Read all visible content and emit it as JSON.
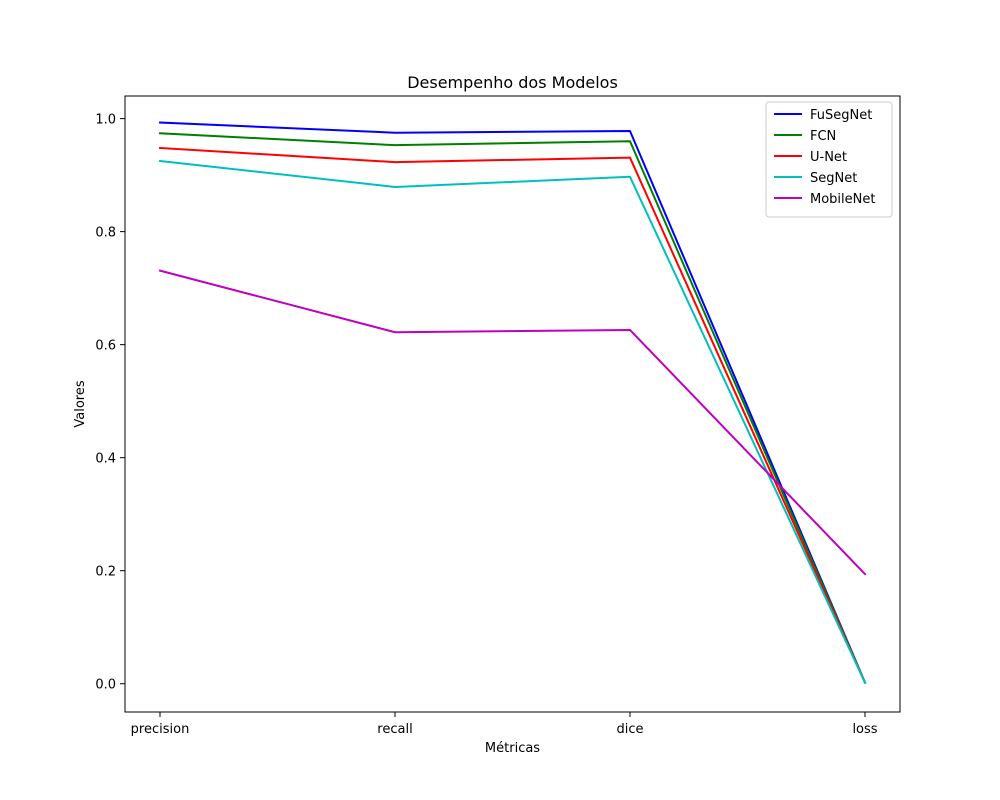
{
  "chart_data": {
    "type": "line",
    "title": "Desempenho dos Modelos",
    "xlabel": "Métricas",
    "ylabel": "Valores",
    "categories": [
      "precision",
      "recall",
      "dice",
      "loss"
    ],
    "ylim": [
      -0.05,
      1.04
    ],
    "yticks": [
      "0.0",
      "0.2",
      "0.4",
      "0.6",
      "0.8",
      "1.0"
    ],
    "grid": false,
    "legend_position": "top-right",
    "series": [
      {
        "name": "FuSegNet",
        "color": "#0000ff",
        "values": [
          0.993,
          0.975,
          0.978,
          0.002
        ]
      },
      {
        "name": "FCN",
        "color": "#008000",
        "values": [
          0.974,
          0.953,
          0.96,
          0.002
        ]
      },
      {
        "name": "U-Net",
        "color": "#ff0000",
        "values": [
          0.948,
          0.923,
          0.931,
          0.002
        ]
      },
      {
        "name": "SegNet",
        "color": "#00bfbf",
        "values": [
          0.925,
          0.879,
          0.897,
          0.002
        ]
      },
      {
        "name": "MobileNet",
        "color": "#bf00bf",
        "values": [
          0.731,
          0.622,
          0.626,
          0.194
        ]
      }
    ]
  }
}
